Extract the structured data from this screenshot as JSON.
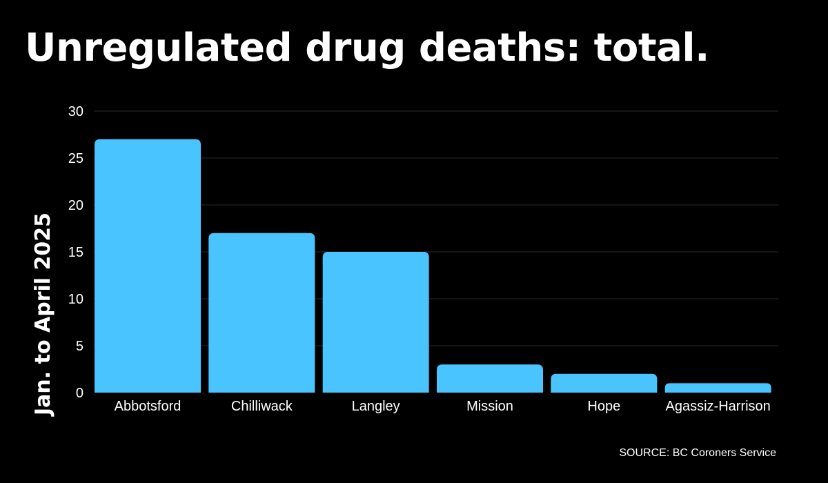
{
  "chart_data": {
    "type": "bar",
    "title": "Unregulated drug deaths: total.",
    "xlabel": "",
    "ylabel": "Jan. to April 2025",
    "categories": [
      "Abbotsford",
      "Chilliwack",
      "Langley",
      "Mission",
      "Hope",
      "Agassiz-Harrison"
    ],
    "values": [
      27,
      17,
      15,
      3,
      2,
      1
    ],
    "ylim": [
      0,
      30
    ],
    "yticks": [
      0,
      5,
      10,
      15,
      20,
      25,
      30
    ],
    "grid": true,
    "bar_color": "#4ac4ff",
    "grid_color": "#2a2a2a",
    "background": "#000000",
    "source": "SOURCE: BC Coroners Service"
  }
}
